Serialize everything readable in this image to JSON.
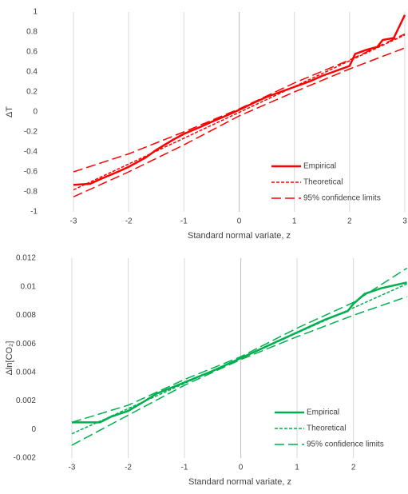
{
  "chart_data": [
    {
      "type": "line",
      "xlabel": "Standard normal variate, z",
      "ylabel": "ΔT",
      "xlim": [
        -3,
        3
      ],
      "ylim": [
        -1,
        1
      ],
      "xticks": [
        -3,
        -2,
        -1,
        0,
        1,
        2,
        3
      ],
      "yticks": [
        -1,
        -0.8,
        -0.6,
        -0.4,
        -0.2,
        0,
        0.2,
        0.4,
        0.6,
        0.8,
        1
      ],
      "grid": "x",
      "legend": "lower right",
      "series": [
        {
          "name": "Empirical",
          "color": "#ff0000",
          "style": "solid",
          "x": [
            -3,
            -2.7,
            -2.5,
            -2.2,
            -2,
            -1.7,
            -1.5,
            -1.2,
            -1,
            -0.7,
            -0.5,
            -0.2,
            0,
            0.3,
            0.5,
            0.8,
            1,
            1.3,
            1.5,
            1.8,
            2,
            2.1,
            2.3,
            2.5,
            2.6,
            2.8,
            3
          ],
          "values": [
            -0.73,
            -0.72,
            -0.67,
            -0.6,
            -0.55,
            -0.46,
            -0.38,
            -0.28,
            -0.22,
            -0.15,
            -0.1,
            -0.03,
            0.02,
            0.1,
            0.15,
            0.21,
            0.25,
            0.31,
            0.36,
            0.42,
            0.46,
            0.58,
            0.62,
            0.65,
            0.72,
            0.74,
            0.97
          ]
        },
        {
          "name": "Theoretical",
          "color": "#ff0000",
          "style": "dash",
          "x": [
            -3,
            3
          ],
          "values": [
            -0.78,
            0.77
          ]
        },
        {
          "name": "95% confidence limits",
          "color": "#ff0000",
          "style": "longdash",
          "x": [
            -3,
            -2,
            -1,
            0,
            1,
            2,
            3
          ],
          "upper": [
            -0.6,
            -0.42,
            -0.2,
            0.03,
            0.29,
            0.52,
            0.78
          ],
          "lower": [
            -0.85,
            -0.6,
            -0.33,
            -0.04,
            0.2,
            0.43,
            0.64
          ]
        }
      ]
    },
    {
      "type": "line",
      "xlabel": "Standard normal variate, z",
      "ylabel": "Δln[CO₂]",
      "xlim": [
        -3,
        2.97
      ],
      "ylim": [
        -0.002,
        0.012
      ],
      "xticks": [
        -3,
        -2,
        -1,
        0,
        1,
        2
      ],
      "yticks": [
        -0.002,
        0,
        0.002,
        0.004,
        0.006,
        0.008,
        0.01,
        0.012
      ],
      "grid": "x",
      "legend": "lower right",
      "series": [
        {
          "name": "Empirical",
          "color": "#00b050",
          "style": "solid",
          "x": [
            -3,
            -2.5,
            -2.3,
            -2,
            -1.7,
            -1.5,
            -1,
            -0.5,
            0,
            0.5,
            1,
            1.5,
            1.9,
            2,
            2.2,
            2.5,
            2.95
          ],
          "values": [
            0.0005,
            0.0005,
            0.0009,
            0.0013,
            0.002,
            0.0025,
            0.0033,
            0.0041,
            0.005,
            0.0059,
            0.0068,
            0.0077,
            0.0083,
            0.0088,
            0.0095,
            0.0099,
            0.0103
          ]
        },
        {
          "name": "Theoretical",
          "color": "#00b050",
          "style": "dash",
          "x": [
            -3,
            2.95
          ],
          "values": [
            -0.0003,
            0.0102
          ]
        },
        {
          "name": "95% confidence limits",
          "color": "#00b050",
          "style": "longdash",
          "x": [
            -3,
            -2,
            -1,
            0,
            1,
            2,
            2.95
          ],
          "upper": [
            0.0005,
            0.0017,
            0.0035,
            0.0051,
            0.0071,
            0.0089,
            0.0113
          ],
          "lower": [
            -0.0011,
            0.001,
            0.0031,
            0.0049,
            0.0065,
            0.008,
            0.0093
          ]
        }
      ]
    }
  ]
}
